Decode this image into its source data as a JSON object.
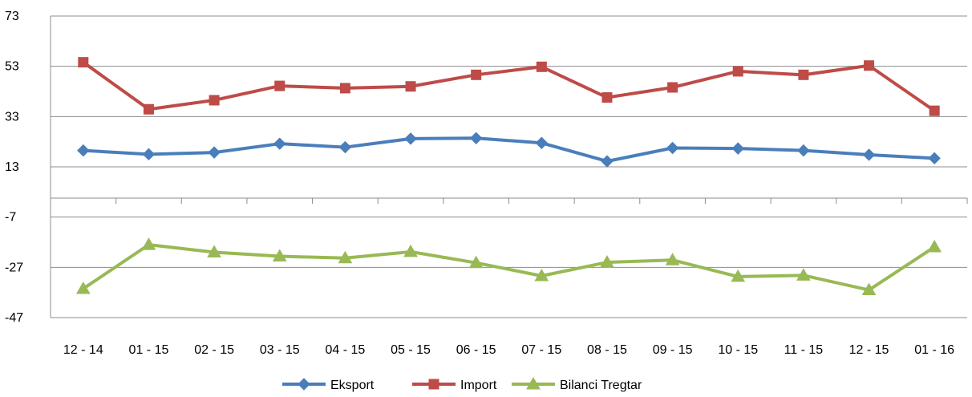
{
  "chart_data": {
    "type": "line",
    "categories": [
      "12 - 14",
      "01 - 15",
      "02 - 15",
      "03 - 15",
      "04 - 15",
      "05 - 15",
      "06 - 15",
      "07 - 15",
      "08 - 15",
      "09 - 15",
      "10 - 15",
      "11 - 15",
      "12 - 15",
      "01 - 16"
    ],
    "series": [
      {
        "name": "Eksport",
        "color": "#4a7ebb",
        "marker": "diamond",
        "values": [
          19.5,
          18,
          18.7,
          22.2,
          20.8,
          24.2,
          24.4,
          22.5,
          15.2,
          20.5,
          20.3,
          19.5,
          17.8,
          16.4
        ]
      },
      {
        "name": "Import",
        "color": "#be4b48",
        "marker": "square",
        "values": [
          54.6,
          35.9,
          39.5,
          45.2,
          44.3,
          45,
          49.6,
          52.8,
          40.6,
          44.6,
          51,
          49.6,
          53.3,
          35.3
        ]
      },
      {
        "name": "Bilanci Tregtar",
        "color": "#98b954",
        "marker": "triangle",
        "values": [
          -35.5,
          -18,
          -21,
          -22.6,
          -23.3,
          -20.8,
          -25.2,
          -30.4,
          -25,
          -24.1,
          -30.7,
          -30.2,
          -36,
          -18.9
        ]
      }
    ],
    "y_ticks": [
      "73",
      "53",
      "33",
      "13",
      "-7",
      "-27",
      "-47"
    ],
    "ylim": [
      -47,
      73
    ],
    "y_tick_step": 20,
    "grid": "horizontal",
    "legend_position": "bottom"
  }
}
